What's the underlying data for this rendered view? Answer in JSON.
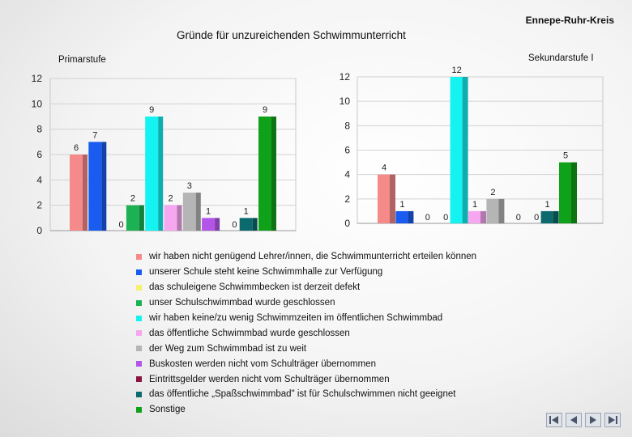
{
  "header": {
    "brand": "Ennepe-Ruhr-Kreis",
    "title": "Gründe für unzureichenden Schwimmunterricht"
  },
  "chart_data": [
    {
      "type": "bar",
      "title": "Primarstufe",
      "ylim": [
        0,
        12
      ],
      "yticks": [
        0,
        2,
        4,
        6,
        8,
        10,
        12
      ],
      "values": [
        6,
        7,
        0,
        2,
        9,
        2,
        3,
        1,
        0,
        1,
        9
      ]
    },
    {
      "type": "bar",
      "title": "Sekundarstufe I",
      "ylim": [
        0,
        12
      ],
      "yticks": [
        0,
        2,
        4,
        6,
        8,
        10,
        12
      ],
      "values": [
        4,
        1,
        0,
        0,
        12,
        1,
        2,
        0,
        0,
        1,
        5
      ]
    }
  ],
  "legend": [
    {
      "label": "wir haben nicht genügend Lehrer/innen, die Schwimmunterricht erteilen können",
      "color": "#f48a8a"
    },
    {
      "label": "unserer Schule steht keine Schwimmhalle zur Verfügung",
      "color": "#1a5cf0"
    },
    {
      "label": "das schuleigene Schwimmbecken ist derzeit defekt",
      "color": "#f4f070"
    },
    {
      "label": "unser Schulschwimmbad wurde geschlossen",
      "color": "#1cb253"
    },
    {
      "label": "wir haben keine/zu wenig Schwimmzeiten im öffentlichen Schwimmbad",
      "color": "#14f2f2"
    },
    {
      "label": "das öffentliche Schwimmbad wurde geschlossen",
      "color": "#f7a6f0"
    },
    {
      "label": "der Weg zum Schwimmbad ist zu weit",
      "color": "#b5b5b5"
    },
    {
      "label": "Buskosten werden nicht vom Schulträger übernommen",
      "color": "#b356e8"
    },
    {
      "label": "Eintrittsgelder werden nicht vom Schulträger übernommen",
      "color": "#8a1540"
    },
    {
      "label": "das öffentliche „Spaßschwimmbad\" ist für Schulschwimmen nicht geeignet",
      "color": "#0c6a6e"
    },
    {
      "label": "Sonstige",
      "color": "#10a11a"
    }
  ],
  "navigation": {
    "first_icon": "first-slide-icon",
    "prev_icon": "previous-slide-icon",
    "next_icon": "next-slide-icon",
    "last_icon": "last-slide-icon"
  }
}
